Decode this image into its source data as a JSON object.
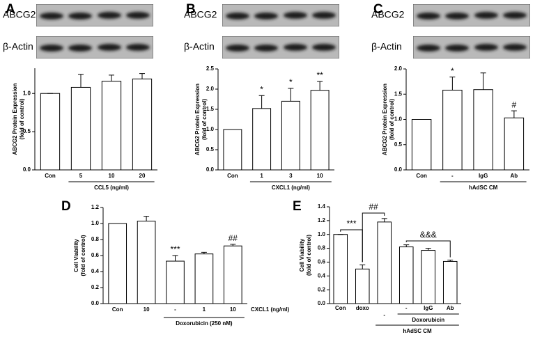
{
  "chart_data": [
    {
      "type": "bar",
      "panel": "A",
      "blots": [
        "ABCG2",
        "β-Actin"
      ],
      "ylabel": [
        "ABCG2 Protein Expression",
        "(fold of control)"
      ],
      "categories": [
        "Con",
        "5",
        "10",
        "20"
      ],
      "values": [
        1.0,
        1.08,
        1.16,
        1.19
      ],
      "errors": [
        0,
        0.17,
        0.08,
        0.07
      ],
      "significance": [
        null,
        null,
        null,
        null
      ],
      "group_labels": [
        "CCL5 (ng/ml)"
      ],
      "color": "#ffffff",
      "ylim": [
        0,
        1.33
      ],
      "yticks": [
        {
          "value": 0,
          "label": "0.0"
        },
        {
          "value": 0.5,
          "label": "0.5"
        },
        {
          "value": 1,
          "label": "1.0"
        }
      ]
    },
    {
      "type": "bar",
      "panel": "B",
      "blots": [
        "ABCG2",
        "β-Actin"
      ],
      "ylabel": [
        "ABCG2 Protein Expression",
        "(fold of control)"
      ],
      "categories": [
        "Con",
        "1",
        "3",
        "10"
      ],
      "values": [
        1.0,
        1.52,
        1.7,
        1.97
      ],
      "errors": [
        0,
        0.32,
        0.32,
        0.22
      ],
      "significance": [
        null,
        "*",
        "*",
        "**"
      ],
      "group_labels": [
        "CXCL1 (ng/ml)"
      ],
      "color": "#ffffff",
      "ylim": [
        0,
        2.5
      ],
      "yticks": [
        {
          "value": 0,
          "label": "0.0"
        },
        {
          "value": 0.5,
          "label": "0.5"
        },
        {
          "value": 1,
          "label": "1.0"
        },
        {
          "value": 1.5,
          "label": "1.5"
        },
        {
          "value": 2,
          "label": "2.0"
        },
        {
          "value": 2.5,
          "label": "2.5"
        }
      ]
    },
    {
      "type": "bar",
      "panel": "C",
      "blots": [
        "ABCG2",
        "β-Actin"
      ],
      "ylabel": [
        "ABCG2 Protein Expression",
        "(fold of control)"
      ],
      "categories": [
        "Con",
        "-",
        "IgG",
        "Ab"
      ],
      "values": [
        1.0,
        1.58,
        1.59,
        1.03
      ],
      "errors": [
        0,
        0.26,
        0.33,
        0.14
      ],
      "significance": [
        null,
        "*",
        null,
        "#"
      ],
      "group_labels": [
        "hAdSC CM"
      ],
      "color": "#ffffff",
      "ylim": [
        0,
        2.0
      ],
      "yticks": [
        {
          "value": 0,
          "label": "0.0"
        },
        {
          "value": 0.5,
          "label": "0.5"
        },
        {
          "value": 1,
          "label": "1.0"
        },
        {
          "value": 1.5,
          "label": "1.5"
        },
        {
          "value": 2,
          "label": "2.0"
        }
      ]
    },
    {
      "type": "bar",
      "panel": "D",
      "ylabel": [
        "Cell Viability",
        "(fold of control)"
      ],
      "categories": [
        "Con",
        "10",
        "-",
        "1",
        "10"
      ],
      "values": [
        1.0,
        1.03,
        0.53,
        0.62,
        0.72
      ],
      "errors": [
        0,
        0.06,
        0.07,
        0.02,
        0.02
      ],
      "significance": [
        null,
        null,
        "***",
        null,
        "##"
      ],
      "x_unit_label": "CXCL1 (ng/ml)",
      "group_labels": [
        "Doxorubicin (250 nM)"
      ],
      "color": "#ffffff",
      "ylim": [
        0,
        1.2
      ],
      "yticks": [
        {
          "value": 0,
          "label": "0.0"
        },
        {
          "value": 0.2,
          "label": "0.2"
        },
        {
          "value": 0.4,
          "label": "0.4"
        },
        {
          "value": 0.6,
          "label": "0.6"
        },
        {
          "value": 0.8,
          "label": "0.8"
        },
        {
          "value": 1,
          "label": "1.0"
        },
        {
          "value": 1.2,
          "label": "1.2"
        }
      ]
    },
    {
      "type": "bar",
      "panel": "E",
      "ylabel": [
        "Cell Viability",
        "(fold of control)"
      ],
      "categories": [
        "Con",
        "doxo",
        "-",
        "-",
        "IgG",
        "Ab"
      ],
      "values": [
        1.0,
        0.5,
        1.18,
        0.82,
        0.77,
        0.61
      ],
      "errors": [
        0,
        0.06,
        0.05,
        0.03,
        0.03,
        0.02
      ],
      "brackets": [
        "***",
        "##",
        "&&&"
      ],
      "group_labels": [
        "Doxorubicin",
        "hAdSC CM"
      ],
      "color": "#ffffff",
      "ylim": [
        0,
        1.4
      ],
      "yticks": [
        {
          "value": 0,
          "label": "0.0"
        },
        {
          "value": 0.2,
          "label": "0.2"
        },
        {
          "value": 0.4,
          "label": "0.4"
        },
        {
          "value": 0.6,
          "label": "0.6"
        },
        {
          "value": 0.8,
          "label": "0.8"
        },
        {
          "value": 1,
          "label": "1.0"
        },
        {
          "value": 1.2,
          "label": "1.2"
        },
        {
          "value": 1.4,
          "label": "1.4"
        }
      ]
    }
  ]
}
